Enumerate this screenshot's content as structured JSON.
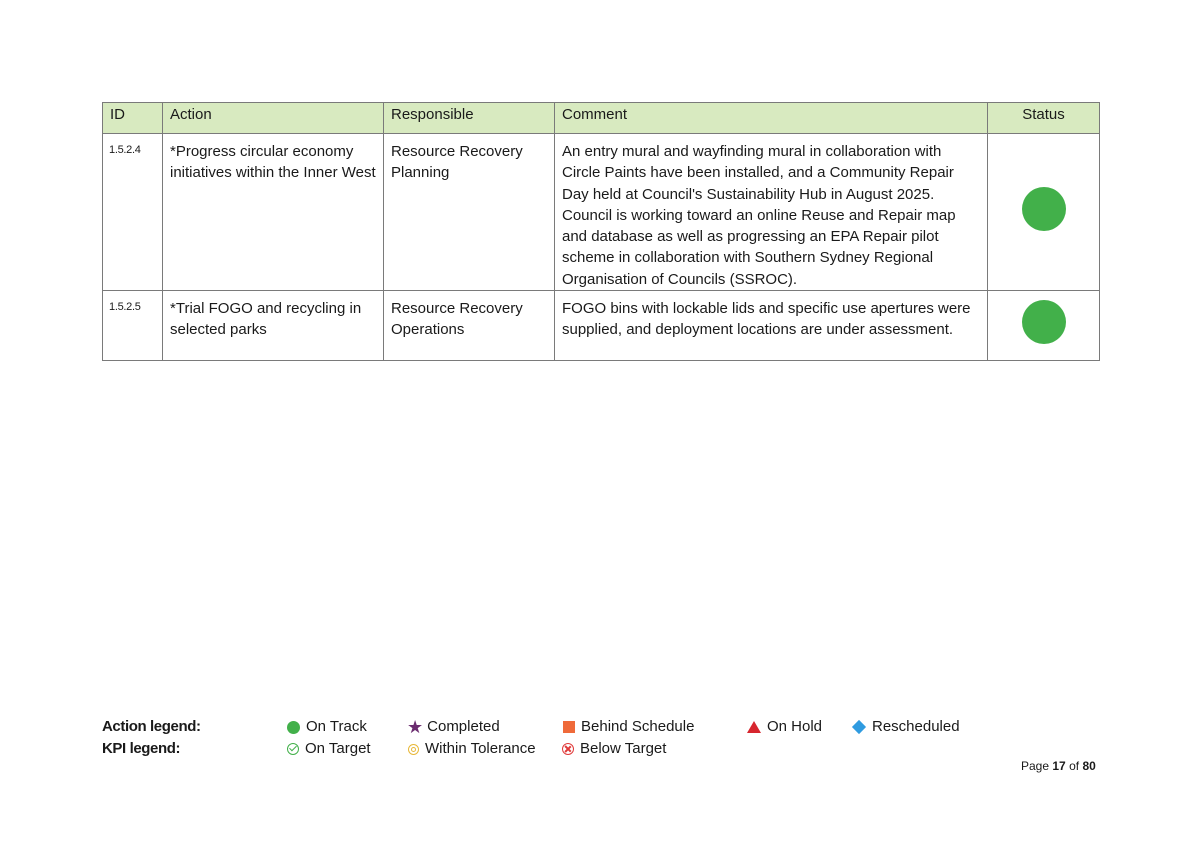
{
  "table": {
    "headers": {
      "id": "ID",
      "action": "Action",
      "responsible": "Responsible",
      "comment": "Comment",
      "status": "Status"
    },
    "rows": [
      {
        "id": "1.5.2.4",
        "action": "*Progress circular economy initiatives within the Inner West",
        "responsible": "Resource Recovery Planning",
        "comment": "An entry mural and wayfinding mural in collaboration with Circle Paints have been installed, and a Community Repair Day held at Council's Sustainability Hub in August 2025. Council is working toward an online Reuse and Repair map and database as well as progressing an EPA Repair pilot scheme in collaboration with Southern Sydney Regional Organisation of Councils (SSROC).",
        "status": "on-track",
        "status_color": "#42b04a"
      },
      {
        "id": "1.5.2.5",
        "action": "*Trial FOGO and recycling in selected parks",
        "responsible": "Resource Recovery Operations",
        "comment": "FOGO bins with lockable lids and specific use apertures were supplied, and deployment locations are under assessment.",
        "status": "on-track",
        "status_color": "#42b04a"
      }
    ]
  },
  "legend": {
    "action_title": "Action legend:",
    "kpi_title": "KPI legend:",
    "action_items": {
      "on_track": "On Track",
      "completed": "Completed",
      "behind_schedule": "Behind Schedule",
      "on_hold": "On Hold",
      "rescheduled": "Rescheduled"
    },
    "kpi_items": {
      "on_target": "On Target",
      "within_tolerance": "Within Tolerance",
      "below_target": "Below Target"
    }
  },
  "footer": {
    "page_prefix": "Page",
    "page_current": "17",
    "page_of": "of",
    "page_total": "80"
  }
}
